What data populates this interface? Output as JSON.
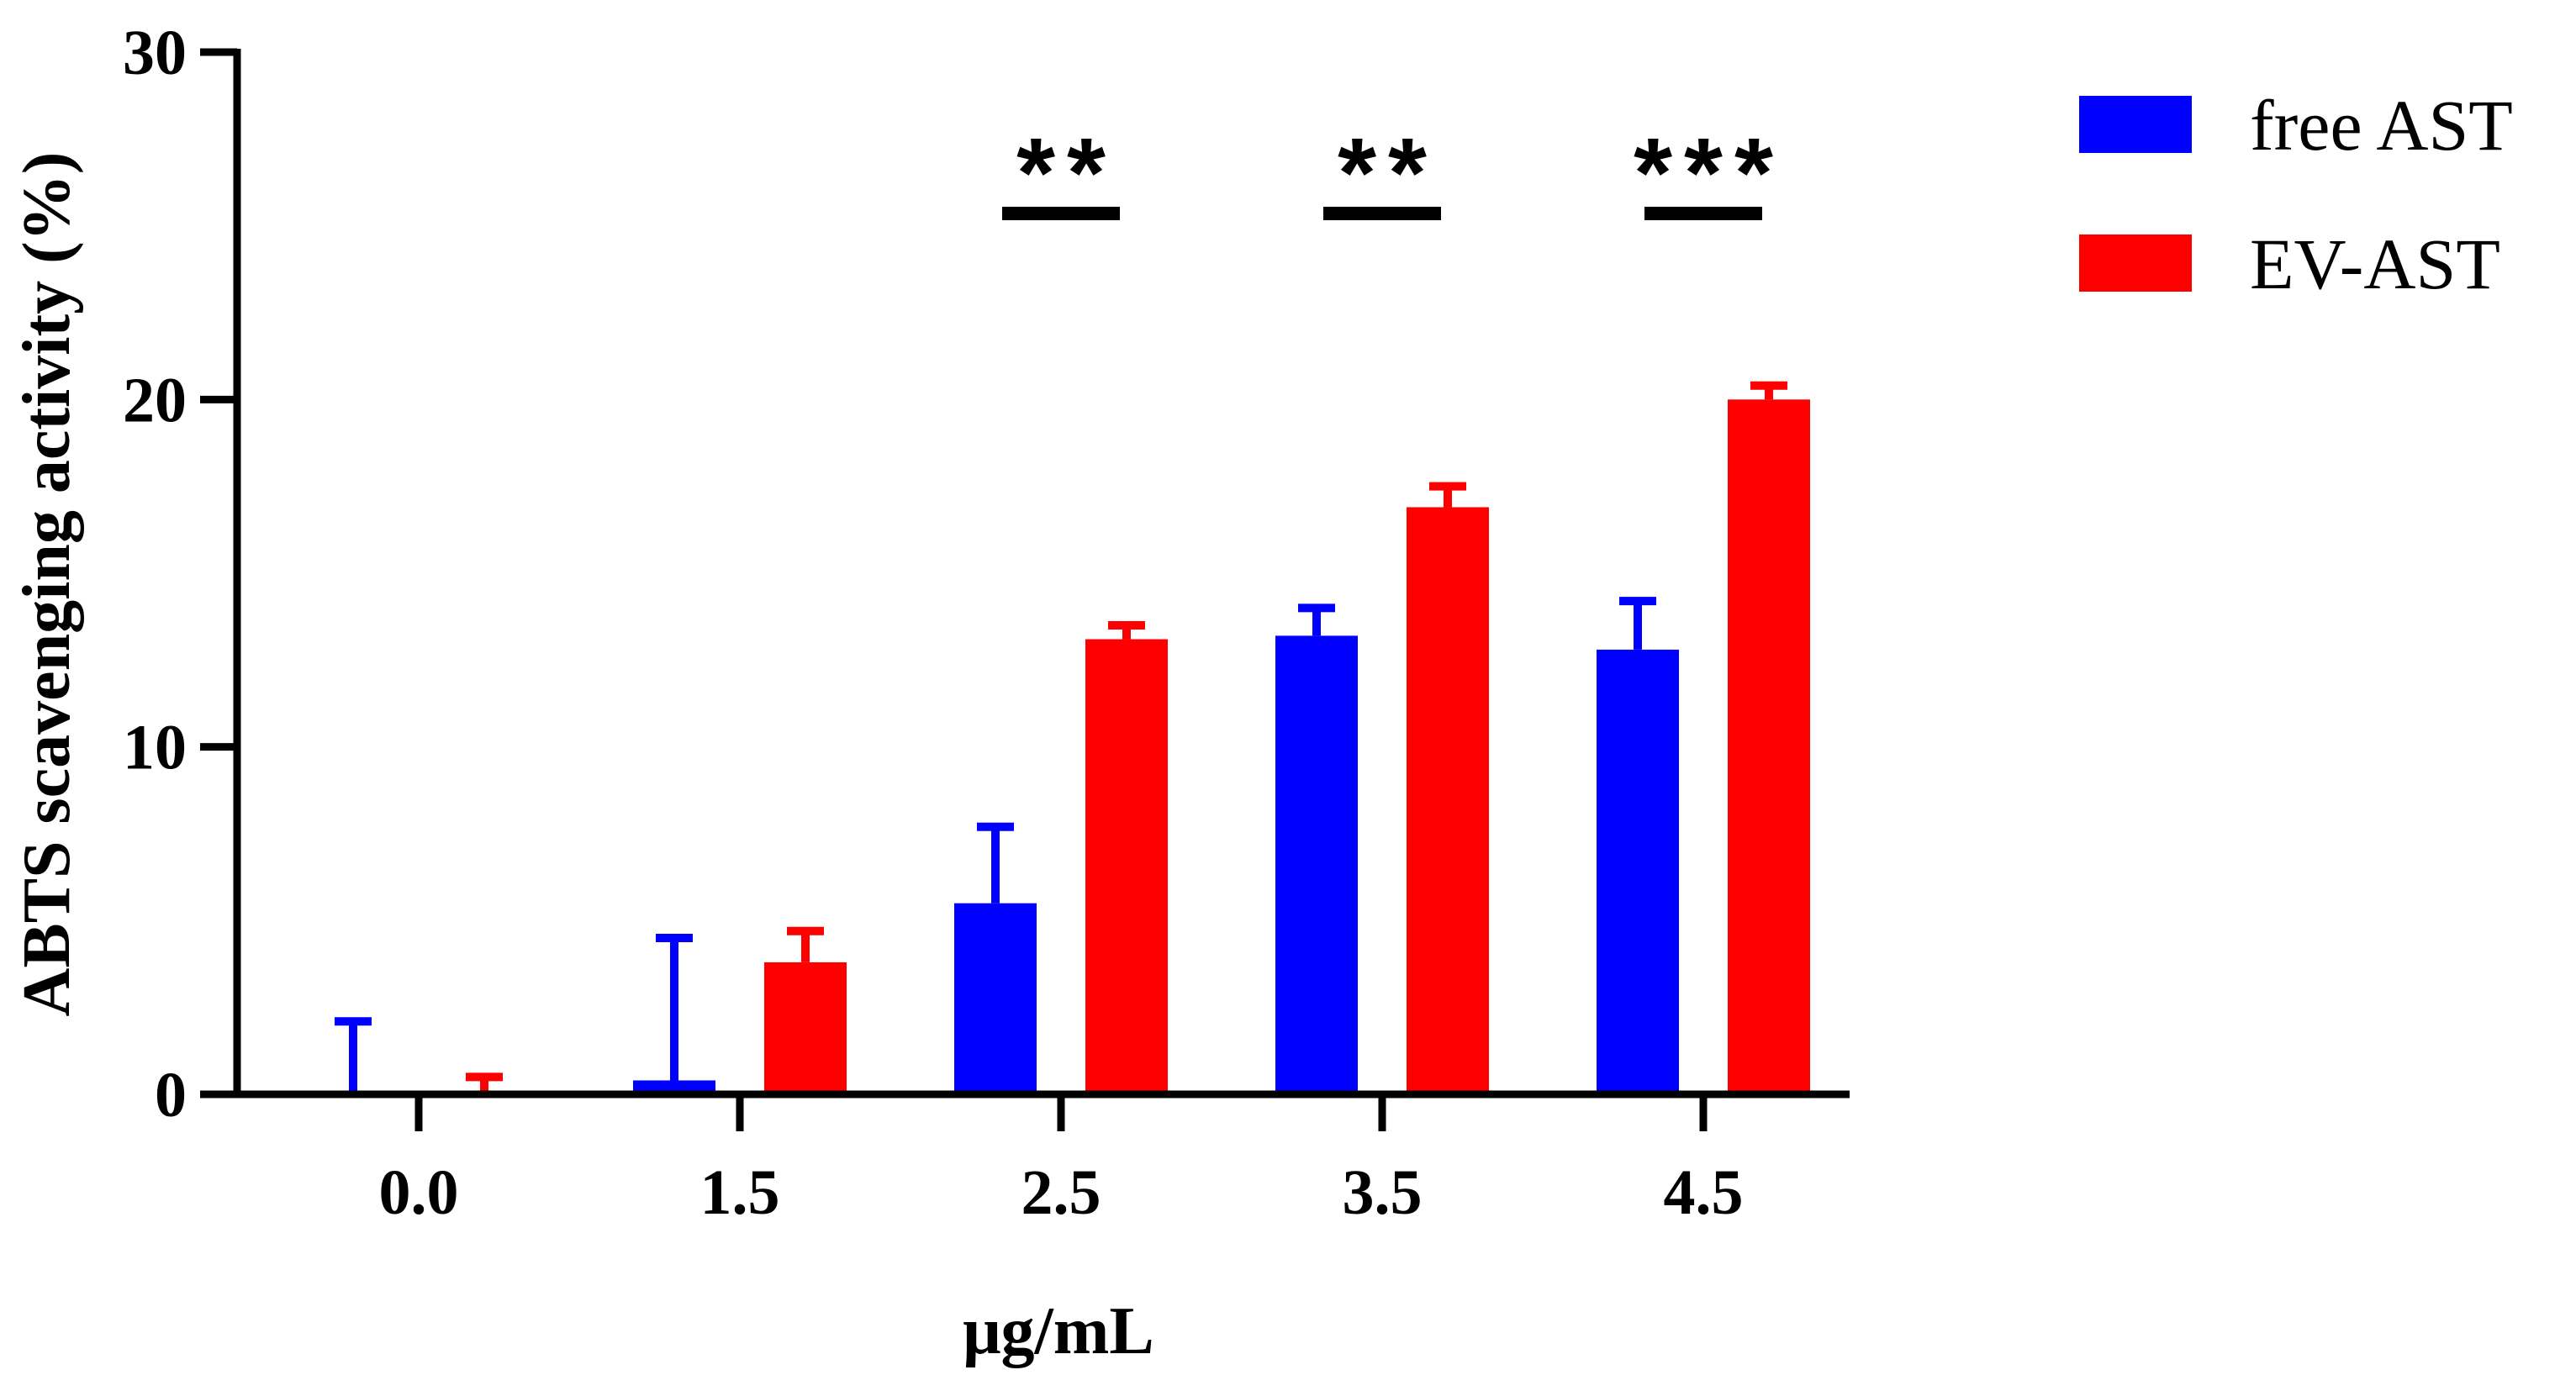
{
  "chart_data": {
    "type": "bar",
    "title": "",
    "xlabel": "μg/mL",
    "ylabel": "ABTS scavenging activity (%)",
    "ylim": [
      0,
      30
    ],
    "yticks": [
      0,
      10,
      20,
      30
    ],
    "categories": [
      "0.0",
      "1.5",
      "2.5",
      "3.5",
      "4.5"
    ],
    "series": [
      {
        "name": "free AST",
        "color": "#0000ff",
        "values": [
          0,
          0.4,
          5.5,
          13.2,
          12.8
        ],
        "errors": [
          2.1,
          4.1,
          2.2,
          0.8,
          1.4
        ]
      },
      {
        "name": "EV-AST",
        "color": "#ff0000",
        "values": [
          0,
          3.8,
          13.1,
          16.9,
          20.0
        ],
        "errors": [
          0.5,
          0.9,
          0.4,
          0.6,
          0.4
        ]
      }
    ],
    "significance": [
      {
        "category": "2.5",
        "label": "**"
      },
      {
        "category": "3.5",
        "label": "**"
      },
      {
        "category": "4.5",
        "label": "***"
      }
    ],
    "legend_position": "top-right",
    "grid": false
  }
}
